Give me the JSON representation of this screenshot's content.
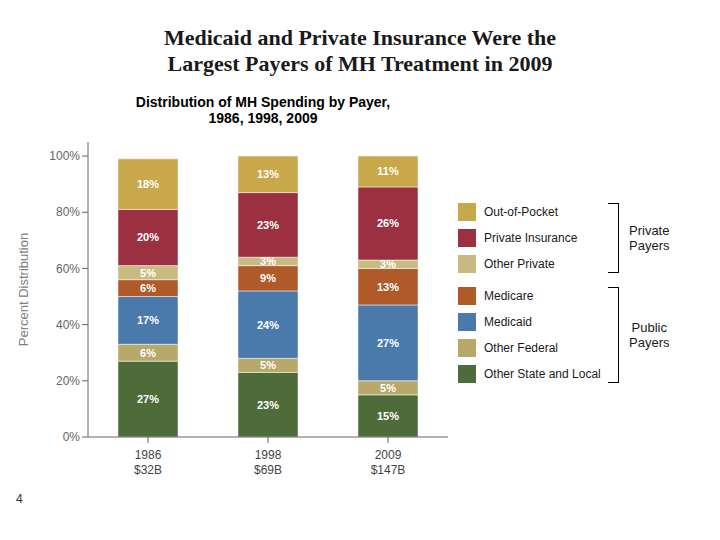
{
  "chart_data": {
    "type": "bar",
    "stacked": true,
    "title": "Medicaid and Private Insurance Were the\nLargest Payers of MH Treatment in 2009",
    "subtitle": "Distribution of MH Spending by Payer,\n1986, 1998, 2009",
    "categories": [
      "1986\n$32B",
      "1998\n$69B",
      "2009\n$147B"
    ],
    "y_label": "Percent Distribution",
    "ylim": [
      0,
      105
    ],
    "yticks": [
      {
        "value": 0,
        "label": "0%"
      },
      {
        "value": 20,
        "label": "20%"
      },
      {
        "value": 40,
        "label": "40%"
      },
      {
        "value": 60,
        "label": "60%"
      },
      {
        "value": 80,
        "label": "80%"
      },
      {
        "value": 100,
        "label": "100%"
      }
    ],
    "grid": false,
    "legend": "right",
    "data_labels": true,
    "series": [
      {
        "name": "Other State and Local",
        "color": "#4e6b3a",
        "values": [
          27,
          23,
          15
        ],
        "value_labels": [
          "27%",
          "23%",
          "15%"
        ]
      },
      {
        "name": "Other Federal",
        "color": "#b8a86a",
        "values": [
          6,
          5,
          5
        ],
        "value_labels": [
          "6%",
          "5%",
          "5%"
        ]
      },
      {
        "name": "Medicaid",
        "color": "#4a7aab",
        "values": [
          17,
          24,
          27
        ],
        "value_labels": [
          "17%",
          "24%",
          "27%"
        ]
      },
      {
        "name": "Medicare",
        "color": "#b05a2a",
        "values": [
          6,
          9,
          13
        ],
        "value_labels": [
          "6%",
          "9%",
          "13%"
        ]
      },
      {
        "name": "Other Private",
        "color": "#c8ba80",
        "values": [
          5,
          3,
          3
        ],
        "value_labels": [
          "5%",
          "3%",
          "3%"
        ]
      },
      {
        "name": "Private Insurance",
        "color": "#9b3040",
        "values": [
          20,
          23,
          26
        ],
        "value_labels": [
          "20%",
          "23%",
          "26%"
        ]
      },
      {
        "name": "Out-of-Pocket",
        "color": "#c8a84a",
        "values": [
          18,
          13,
          11
        ],
        "value_labels": [
          "18%",
          "13%",
          "11%"
        ]
      }
    ],
    "annotations": [
      {
        "text": "Private\nPayers",
        "series": [
          "Out-of-Pocket",
          "Private Insurance",
          "Other Private"
        ]
      },
      {
        "text": "Public\nPayers",
        "series": [
          "Medicare",
          "Medicaid",
          "Other Federal",
          "Other State and Local"
        ]
      },
      {
        "text": "4"
      }
    ]
  }
}
